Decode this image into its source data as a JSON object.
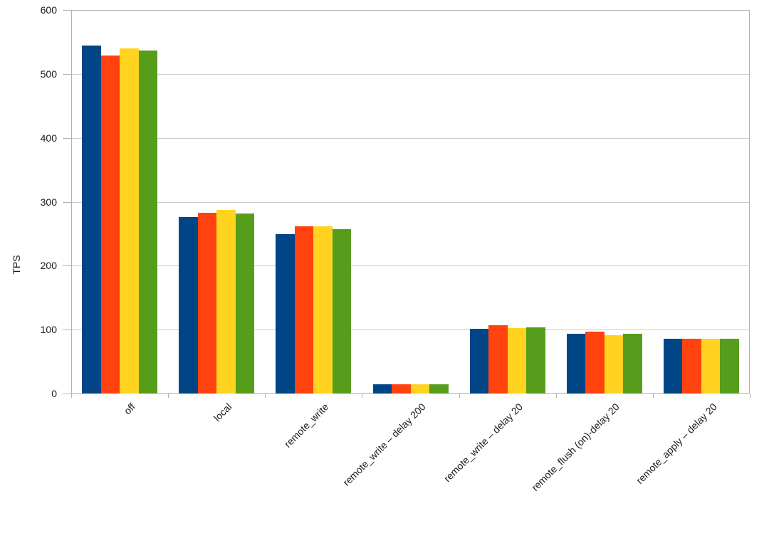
{
  "chart_data": {
    "type": "bar",
    "title": "",
    "xlabel": "",
    "ylabel": "TPS",
    "ylim": [
      0,
      600
    ],
    "yticks": [
      0,
      100,
      200,
      300,
      400,
      500,
      600
    ],
    "grid": true,
    "legend_position": "none",
    "background_color": "#ffffff",
    "gridline_color": "#cccccc",
    "axis_color": "#b2b2b2",
    "text_color": "#1a1a1a",
    "categories": [
      "off",
      "local",
      "remote_write",
      "remote_write – delay 200",
      "remote_write – delay 20",
      "remote_flush (on)-delay 20",
      "remote_apply – delay 20"
    ],
    "series": [
      {
        "color": "#004586",
        "values": [
          544,
          276,
          249,
          14,
          101,
          94,
          86
        ]
      },
      {
        "color": "#FF420E",
        "values": [
          529,
          283,
          262,
          14,
          107,
          97,
          86
        ]
      },
      {
        "color": "#FFD320",
        "values": [
          540,
          287,
          262,
          14,
          102,
          91,
          86
        ]
      },
      {
        "color": "#579D1C",
        "values": [
          537,
          282,
          257,
          14,
          103,
          94,
          86
        ]
      }
    ]
  }
}
